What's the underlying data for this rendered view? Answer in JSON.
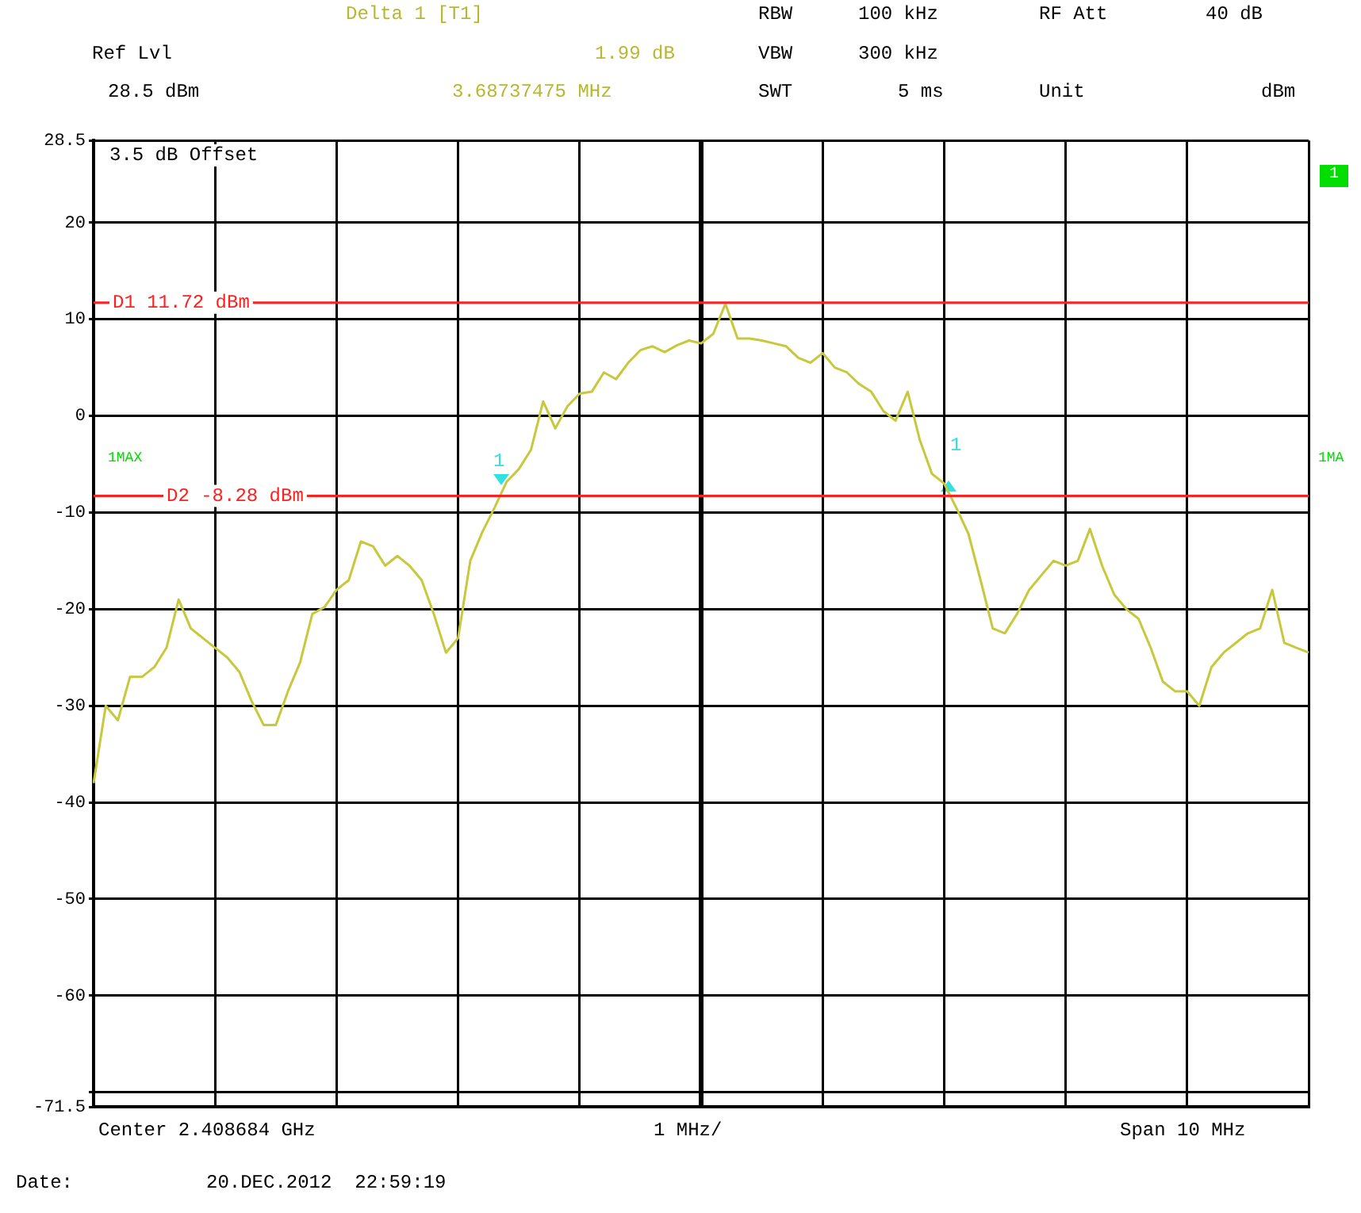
{
  "chart_data": {
    "type": "line",
    "categories": [
      null,
      null,
      null,
      null,
      null,
      null,
      null,
      null,
      null,
      null,
      null,
      null,
      null,
      null,
      null,
      null,
      null,
      null,
      null,
      null,
      null,
      null,
      null,
      null,
      null,
      null,
      null,
      null,
      null,
      null,
      null,
      null,
      null,
      null,
      null,
      null,
      null,
      null,
      null,
      null,
      null,
      null,
      null,
      null,
      null,
      null,
      null,
      null,
      null,
      null,
      null,
      null,
      null,
      null,
      null,
      null,
      null,
      null,
      null,
      null,
      null,
      null,
      null,
      null,
      null,
      null,
      null,
      null,
      null,
      null,
      null,
      null,
      null,
      null,
      null,
      null,
      null,
      null,
      null,
      null,
      null,
      null,
      null,
      null,
      null,
      null,
      null,
      null,
      null,
      null,
      null,
      null,
      null,
      null,
      null,
      null,
      null,
      null,
      null,
      null,
      null
    ],
    "series": [
      {
        "color": "#c8c83c",
        "values": [
          -38,
          -30,
          -31.5,
          -27,
          -27,
          -26,
          -24,
          -19,
          -22,
          -23,
          -24,
          -25,
          -26.5,
          -29.5,
          -32,
          -32,
          -28.5,
          -25.5,
          -20.5,
          -19.8,
          -18,
          -17,
          -13,
          -13.5,
          -15.5,
          -14.5,
          -15.5,
          -17,
          -20.5,
          -24.5,
          -23,
          -15,
          -12,
          -9.5,
          -6.8,
          -5.5,
          -3.5,
          1.5,
          -1.3,
          1,
          2.3,
          2.5,
          4.5,
          3.8,
          5.5,
          6.8,
          7.2,
          6.6,
          7.3,
          7.8,
          7.5,
          8.5,
          11.6,
          8,
          8,
          7.8,
          7.5,
          7.2,
          6,
          5.5,
          6.5,
          5,
          4.5,
          3.3,
          2.5,
          0.5,
          -0.5,
          2.5,
          -2.5,
          -6,
          -7,
          -9.5,
          -12.2,
          -17,
          -22,
          -22.5,
          -20.5,
          -18,
          -16.5,
          -15,
          -15.5,
          -15,
          -11.7,
          -15.5,
          -18.5,
          -20,
          -21,
          -24,
          -27.5,
          -28.5,
          -28.5,
          -30,
          -26,
          -24.5,
          -23.5,
          -22.5,
          -22,
          -18,
          -23.5,
          -24,
          -24.5
        ]
      }
    ],
    "ylim": [
      -71.5,
      28.5
    ],
    "yticks": [
      28.5,
      20,
      10,
      0,
      -10,
      -20,
      -30,
      -40,
      -50,
      -60,
      {
        "value": -70,
        "label": null
      },
      -71.5
    ],
    "grid": true,
    "legend": false,
    "tick_labels": "y",
    "marker": "none",
    "line_style": "solid",
    "ref_lines": [
      {
        "axis": "y",
        "value": 11.72,
        "label": "D1 11.72 dBm",
        "color": "#ff2020"
      },
      {
        "axis": "y",
        "value": -8.28,
        "label": "D2 -8.28 dBm",
        "color": "#ff2020"
      }
    ],
    "annotations": [
      "Delta 1 [T1]",
      "Ref Lvl",
      "1.99 dB",
      "28.5 dBm",
      "3.68737475 MHz",
      "RBW",
      "100 kHz",
      "RF Att",
      "40 dB",
      "VBW",
      "300 kHz",
      "SWT",
      "5 ms",
      "Unit",
      "dBm",
      "3.5 dB Offset",
      "Center 2.408684 GHz",
      "1 MHz/",
      "Span 10 MHz",
      "Date:",
      "20.DEC.2012  22:59:19",
      "1MAX",
      "1MA",
      "1",
      "1",
      "1"
    ]
  }
}
